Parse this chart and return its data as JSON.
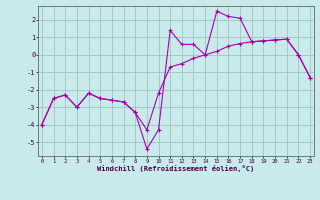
{
  "xlabel": "Windchill (Refroidissement éolien,°C)",
  "background_color": "#c8eaea",
  "line_color": "#aa00aa",
  "grid_color": "#99bbbb",
  "x": [
    0,
    1,
    2,
    3,
    4,
    5,
    6,
    7,
    8,
    9,
    10,
    11,
    12,
    13,
    14,
    15,
    16,
    17,
    18,
    19,
    20,
    21,
    22,
    23
  ],
  "y_lower": [
    -4.0,
    -2.5,
    -2.3,
    -3.0,
    -2.2,
    -2.5,
    -2.6,
    -2.7,
    -3.3,
    -4.3,
    -2.2,
    -0.7,
    -0.5,
    -0.2,
    0.0,
    0.2,
    0.5,
    0.65,
    0.75,
    0.8,
    0.85,
    0.9,
    0.0,
    -1.3
  ],
  "y_upper": [
    -4.0,
    -2.5,
    -2.3,
    -3.0,
    -2.2,
    -2.5,
    -2.6,
    -2.7,
    -3.3,
    -5.4,
    -4.3,
    1.4,
    0.6,
    0.6,
    0.0,
    2.5,
    2.2,
    2.1,
    0.75,
    0.8,
    0.85,
    0.9,
    0.0,
    -1.3
  ],
  "ylim": [
    -5.8,
    2.8
  ],
  "xlim": [
    -0.3,
    23.3
  ],
  "yticks": [
    -5,
    -4,
    -3,
    -2,
    -1,
    0,
    1,
    2
  ],
  "xticks": [
    0,
    1,
    2,
    3,
    4,
    5,
    6,
    7,
    8,
    9,
    10,
    11,
    12,
    13,
    14,
    15,
    16,
    17,
    18,
    19,
    20,
    21,
    22,
    23
  ]
}
